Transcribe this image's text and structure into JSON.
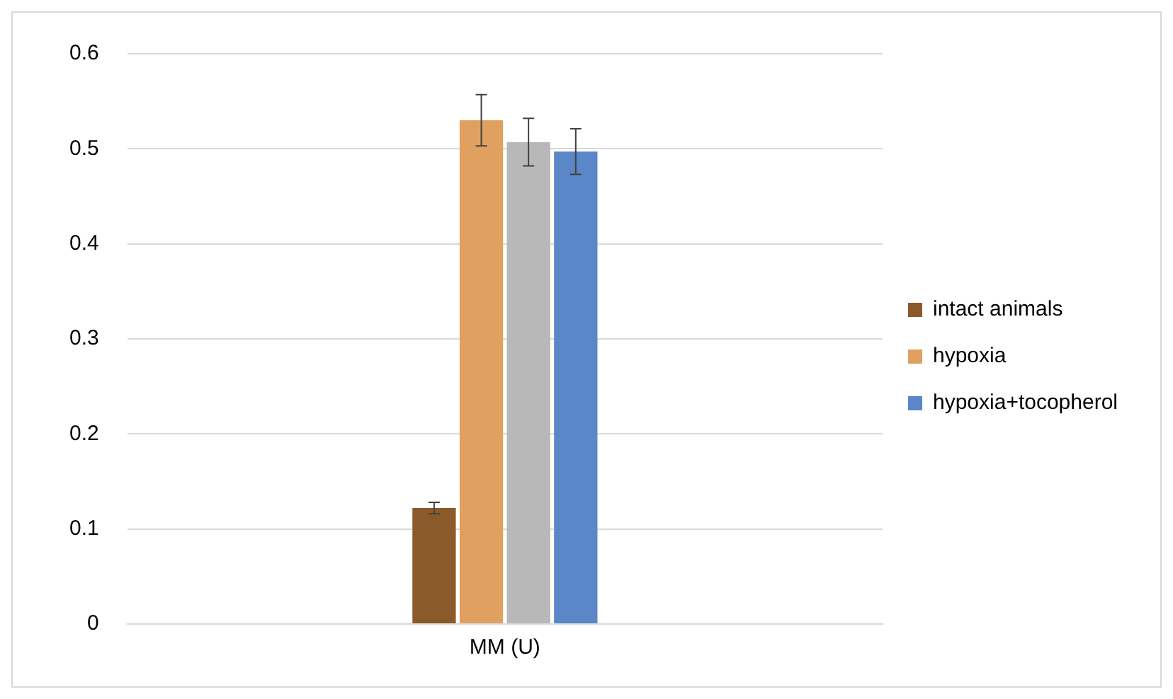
{
  "chart_data": {
    "type": "bar",
    "categories": [
      "MM (U)"
    ],
    "series": [
      {
        "name": "intact animals",
        "color": "#8b5a2b",
        "values": [
          0.122
        ],
        "errors": [
          0.006
        ]
      },
      {
        "name": "hypoxia",
        "color": "#e0a060",
        "values": [
          0.53
        ],
        "errors": [
          0.027
        ]
      },
      {
        "color": "#b8b8b8",
        "values": [
          0.507
        ],
        "errors": [
          0.025
        ]
      },
      {
        "name": "hypoxia+tocopherol",
        "color": "#5b86c8",
        "values": [
          0.497
        ],
        "errors": [
          0.024
        ]
      }
    ],
    "ylim": [
      0,
      0.6
    ],
    "yticks": [
      0,
      0.1,
      0.2,
      0.3,
      0.4,
      0.5,
      0.6
    ],
    "grid": "y",
    "legend": "right"
  }
}
